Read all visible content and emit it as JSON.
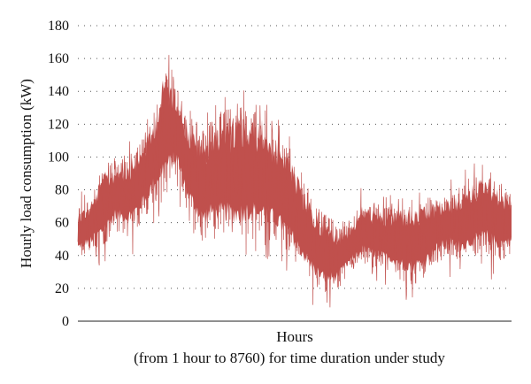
{
  "chart_data": {
    "type": "line",
    "title": "",
    "xlabel": "Hours",
    "xlabel_sub": "(from 1 hour to 8760) for time duration under study",
    "ylabel": "Hourly load consumption (kW)",
    "xlim": [
      1,
      8760
    ],
    "ylim": [
      0,
      180
    ],
    "yticks": [
      0,
      20,
      40,
      60,
      80,
      100,
      120,
      140,
      160,
      180
    ],
    "grid": "horizontal dotted",
    "legend": "none",
    "series_color": "#c0504d",
    "series": [
      {
        "x": [
          1,
          250,
          500,
          750,
          1000,
          1250,
          1500,
          1750,
          2000,
          2250,
          2500,
          2750,
          3000,
          3250,
          3500,
          3750,
          4000,
          4250,
          4500,
          4750,
          5000,
          5250,
          5500,
          5750,
          6000,
          6250,
          6500,
          6750,
          7000,
          7250,
          7500,
          7750,
          8000,
          8250,
          8500,
          8760
        ],
        "min": [
          38,
          42,
          44,
          55,
          52,
          58,
          70,
          75,
          85,
          62,
          48,
          50,
          48,
          45,
          50,
          48,
          46,
          40,
          30,
          20,
          15,
          18,
          30,
          35,
          32,
          30,
          25,
          22,
          25,
          35,
          40,
          35,
          38,
          40,
          36,
          40
        ],
        "max": [
          70,
          75,
          95,
          100,
          102,
          110,
          125,
          160,
          150,
          125,
          118,
          125,
          130,
          135,
          130,
          132,
          118,
          108,
          90,
          75,
          65,
          60,
          62,
          75,
          72,
          70,
          75,
          74,
          75,
          78,
          78,
          82,
          90,
          95,
          85,
          80
        ]
      }
    ]
  }
}
